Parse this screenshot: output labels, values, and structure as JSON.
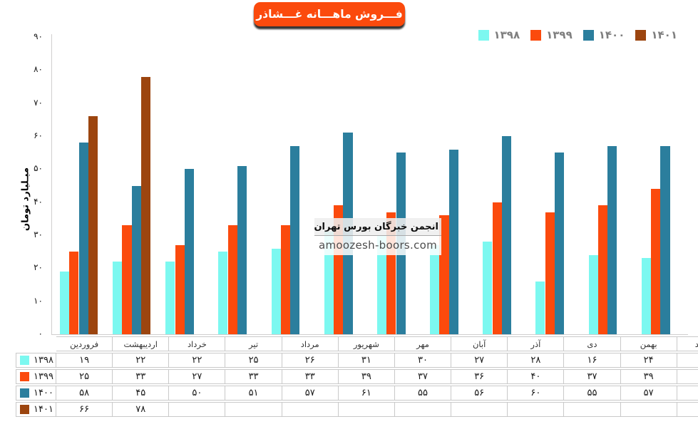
{
  "title": {
    "text": "فـــروش ماهـــانه غـــشاذر"
  },
  "watermark": {
    "line1": "انجمن خبرگان بورس تهران",
    "line2": "amoozesh-boors.com"
  },
  "colors": {
    "badge_bg": "#FB4A0D",
    "axis_line": "#D0CECE",
    "table_border": "#C9C9C9",
    "legend_text": "#7F7F7F"
  },
  "chart_data": {
    "type": "bar",
    "title": "فـــروش ماهـــانه غـــشاذر",
    "ylabel": "میـلیارد تومان",
    "xlabel": "",
    "ylim": [
      0,
      90
    ],
    "ytick_step": 10,
    "grid": false,
    "legend_position": "top-right",
    "yticks": [
      {
        "value": 0,
        "label": "۰"
      },
      {
        "value": 10,
        "label": "۱۰"
      },
      {
        "value": 20,
        "label": "۲۰"
      },
      {
        "value": 30,
        "label": "۳۰"
      },
      {
        "value": 40,
        "label": "۴۰"
      },
      {
        "value": 50,
        "label": "۵۰"
      },
      {
        "value": 60,
        "label": "۶۰"
      },
      {
        "value": 70,
        "label": "۷۰"
      },
      {
        "value": 80,
        "label": "۸۰"
      },
      {
        "value": 90,
        "label": "۹۰"
      }
    ],
    "categories": [
      "فروردین",
      "اردیبهشت",
      "خرداد",
      "تیر",
      "مرداد",
      "شهریور",
      "مهر",
      "آبان",
      "آذر",
      "دی",
      "بهمن",
      "اسفند"
    ],
    "series": [
      {
        "name": "۱۳۹۸",
        "name_latin": "1398",
        "color": "#7CF8F0",
        "values": [
          19,
          22,
          22,
          25,
          26,
          31,
          30,
          27,
          28,
          16,
          24,
          23
        ],
        "labels": [
          "۱۹",
          "۲۲",
          "۲۲",
          "۲۵",
          "۲۶",
          "۳۱",
          "۳۰",
          "۲۷",
          "۲۸",
          "۱۶",
          "۲۴",
          "۲۳"
        ]
      },
      {
        "name": "۱۳۹۹",
        "name_latin": "1399",
        "color": "#FB4A0D",
        "values": [
          25,
          33,
          27,
          33,
          33,
          39,
          37,
          36,
          40,
          37,
          39,
          44
        ],
        "labels": [
          "۲۵",
          "۳۳",
          "۲۷",
          "۳۳",
          "۳۳",
          "۳۹",
          "۳۷",
          "۳۶",
          "۴۰",
          "۳۷",
          "۳۹",
          "۴۴"
        ]
      },
      {
        "name": "۱۴۰۰",
        "name_latin": "1400",
        "color": "#2B7E9D",
        "values": [
          58,
          45,
          50,
          51,
          57,
          61,
          55,
          56,
          60,
          55,
          57,
          57
        ],
        "labels": [
          "۵۸",
          "۴۵",
          "۵۰",
          "۵۱",
          "۵۷",
          "۶۱",
          "۵۵",
          "۵۶",
          "۶۰",
          "۵۵",
          "۵۷",
          "۵۷"
        ]
      },
      {
        "name": "۱۴۰۱",
        "name_latin": "1401",
        "color": "#9C450F",
        "values": [
          66,
          78,
          null,
          null,
          null,
          null,
          null,
          null,
          null,
          null,
          null,
          null
        ],
        "labels": [
          "۶۶",
          "۷۸",
          "",
          "",
          "",
          "",
          "",
          "",
          "",
          "",
          "",
          ""
        ]
      }
    ]
  }
}
